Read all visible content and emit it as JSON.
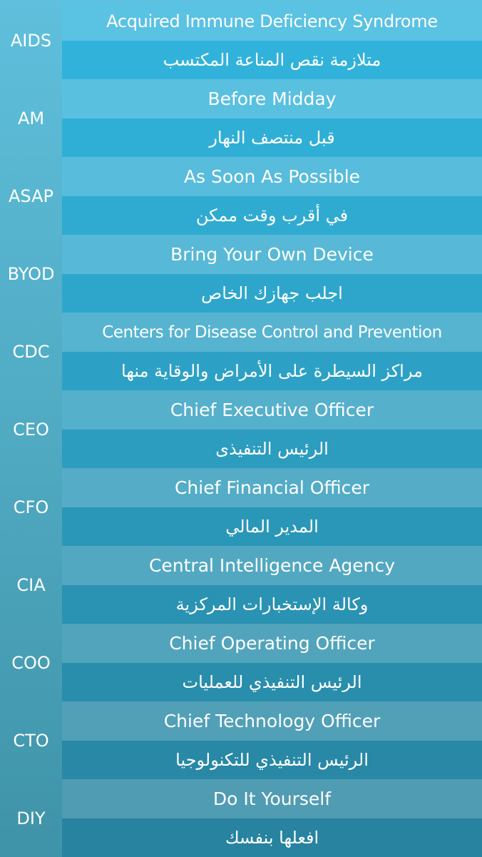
{
  "entries": [
    {
      "abbr": "AIDS",
      "english": "Acquired Immune Deficiency Syndrome",
      "arabic": "متلازمة نقص المناعة المكتسب",
      "colors": {
        "top": "#5ac2e3",
        "bottom": "#31b2da"
      }
    },
    {
      "abbr": "AM",
      "english": "Before Midday",
      "arabic": "قبل منتصف النهار",
      "colors": {
        "top": "#59c0e0",
        "bottom": "#30afd6"
      }
    },
    {
      "abbr": "ASAP",
      "english": "As Soon As Possible",
      "arabic": "في أقرب وقت ممكن",
      "colors": {
        "top": "#58bcdc",
        "bottom": "#2fabd1"
      }
    },
    {
      "abbr": "BYOD",
      "english": "Bring Your Own Device",
      "arabic": "اجلب جهازك الخاص",
      "colors": {
        "top": "#57b8d7",
        "bottom": "#2ea6cb"
      }
    },
    {
      "abbr": "CDC",
      "english": "Centers for Disease Control and Prevention",
      "arabic": "مراكز السيطرة على الأمراض والوقاية منها",
      "colors": {
        "top": "#56b4d1",
        "bottom": "#2da1c5"
      }
    },
    {
      "abbr": "CEO",
      "english": "Chief Executive Officer",
      "arabic": "الرئيس التنفيذى",
      "colors": {
        "top": "#55b0cc",
        "bottom": "#2c9cbf"
      }
    },
    {
      "abbr": "CFO",
      "english": "Chief Financial Officer",
      "arabic": "المدير المالي",
      "colors": {
        "top": "#54acc6",
        "bottom": "#2b97b8"
      }
    },
    {
      "abbr": "CIA",
      "english": "Central Intelligence Agency",
      "arabic": "وكالة الإستخبارات المركزية",
      "colors": {
        "top": "#53a8c1",
        "bottom": "#2a92b2"
      }
    },
    {
      "abbr": "COO",
      "english": "Chief Operating Officer",
      "arabic": "الرئيس التنفيذي للعمليات",
      "colors": {
        "top": "#52a4bc",
        "bottom": "#298dac"
      }
    },
    {
      "abbr": "CTO",
      "english": "Chief Technology Officer",
      "arabic": "الرئيس التنفيذي للتكنولوجيا",
      "colors": {
        "top": "#51a0b7",
        "bottom": "#2888a6"
      }
    },
    {
      "abbr": "DIY",
      "english": "Do It Yourself",
      "arabic": "افعلها بنفسك",
      "colors": {
        "top": "#509cb2",
        "bottom": "#2783a0"
      }
    }
  ]
}
